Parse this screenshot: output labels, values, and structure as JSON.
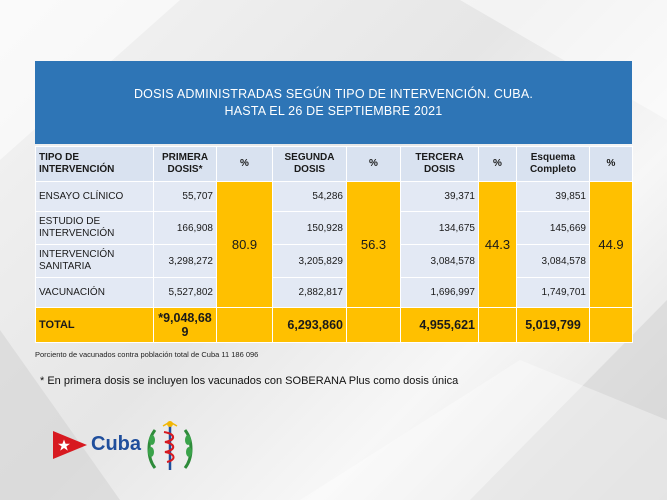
{
  "title": {
    "line1": "DOSIS ADMINISTRADAS SEGÚN TIPO DE INTERVENCIÓN. CUBA.",
    "line2": "HASTA EL 26 DE SEPTIEMBRE 2021"
  },
  "table": {
    "headers": {
      "tipo": "TIPO DE INTERVENCIÓN",
      "primera": "PRIMERA DOSIS*",
      "pct1": "%",
      "segunda": "SEGUNDA DOSIS",
      "pct2": "%",
      "tercera": "TERCERA DOSIS",
      "pct3": "%",
      "esquema": "Esquema Completo",
      "pct4": "%"
    },
    "rows": [
      {
        "label": "ENSAYO CLÍNICO",
        "primera": "55,707",
        "segunda": "54,286",
        "tercera": "39,371",
        "esquema": "39,851"
      },
      {
        "label": "ESTUDIO DE INTERVENCIÓN",
        "primera": "166,908",
        "segunda": "150,928",
        "tercera": "134,675",
        "esquema": "145,669"
      },
      {
        "label": "INTERVENCIÓN SANITARIA",
        "primera": "3,298,272",
        "segunda": "3,205,829",
        "tercera": "3,084,578",
        "esquema": "3,084,578"
      },
      {
        "label": "VACUNACIÓN",
        "primera": "5,527,802",
        "segunda": "2,882,817",
        "tercera": "1,696,997",
        "esquema": "1,749,701"
      }
    ],
    "percentages": {
      "primera": "80.9",
      "segunda": "56.3",
      "tercera": "44.3",
      "esquema": "44.9"
    },
    "total": {
      "label": "TOTAL",
      "primera": "*9,048,689",
      "segunda": "6,293,860",
      "tercera": "4,955,621",
      "esquema": "5,019,799"
    }
  },
  "note": "Porciento de vacunados contra población total de Cuba 11 186 096",
  "footnote": "* En primera dosis se incluyen los vacunados con SOBERANA Plus como dosis única",
  "logo": {
    "word": "Cuba"
  },
  "colors": {
    "title_bg": "#2e75b6",
    "header_bg": "#d9e2f0",
    "cell_bg": "#e3e9f4",
    "highlight": "#ffc000",
    "logo_blue": "#1f4e9c",
    "logo_red": "#d71920"
  }
}
